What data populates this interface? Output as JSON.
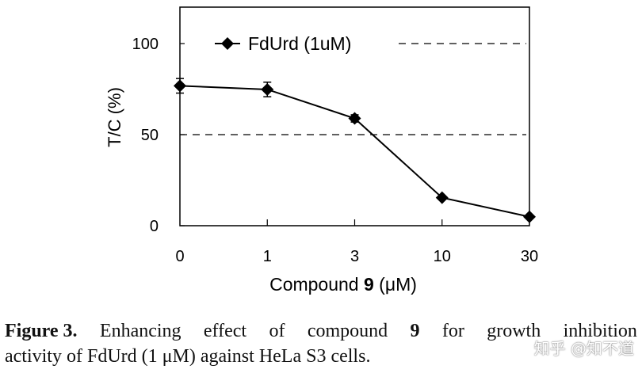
{
  "chart_data": {
    "type": "line",
    "categories": [
      "0",
      "1",
      "3",
      "10",
      "30"
    ],
    "series": [
      {
        "name": "FdUrd (1uM)",
        "values": [
          76.8,
          74.8,
          58.9,
          15.4,
          4.9
        ],
        "errors": [
          4,
          4,
          2,
          1,
          1
        ]
      }
    ],
    "reference_lines": [
      50,
      100
    ],
    "xlabel_prefix": "Compound ",
    "xlabel_bold": "9",
    "xlabel_suffix": " (μM)",
    "ylabel": "T/C (%)",
    "ylim": [
      0,
      120
    ],
    "yticks": [
      "0",
      "50",
      "100"
    ],
    "legend_position": "top-left",
    "grid": false,
    "color": "#000000"
  },
  "caption": {
    "label": "Figure 3.",
    "line1_words": [
      "Enhancing",
      "effect",
      "of",
      "compound",
      "9",
      "for",
      "growth",
      "inhibition"
    ],
    "line2": "activity of FdUrd (1 μM) against HeLa S3 cells."
  },
  "watermark": "知乎 @知不道"
}
